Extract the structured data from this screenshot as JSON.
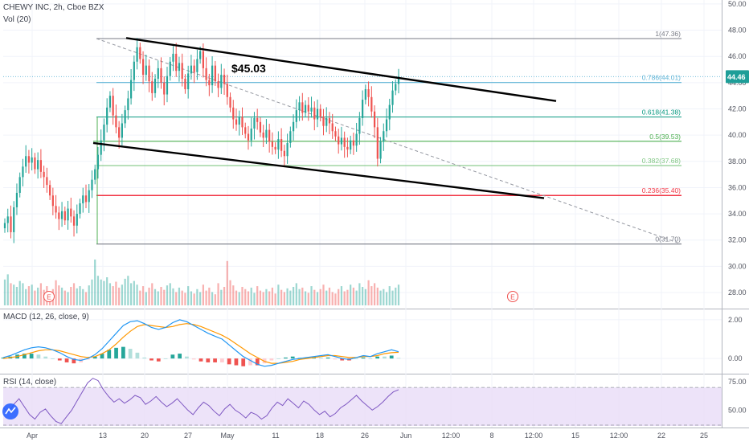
{
  "header": {
    "symbol_line": "CHEWY INC, 2h, Cboe BZX",
    "vol_line": "Vol (20)"
  },
  "colors": {
    "up": "#26a69a",
    "down": "#ef5350",
    "macd_line": "#2196f3",
    "signal_line": "#ff9800",
    "rsi_line": "#7e57c2",
    "rsi_band": "#e9dcf7",
    "trendline": "#000000",
    "fib_1": "#787b86",
    "fib_0786": "#5fb4d6",
    "fib_0618": "#089981",
    "fib_05": "#4caf50",
    "fib_0382": "#81c784",
    "fib_0236": "#f23645",
    "fib_0": "#787b86",
    "price_tag": "#1e9e98"
  },
  "chart_data": [
    {
      "type": "candlestick",
      "pane": "price",
      "title": "CHEWY INC, 2h, Cboe BZX",
      "ylim": [
        26.9,
        50.3
      ],
      "y_ticks": [
        "28.00",
        "30.00",
        "32.00",
        "34.00",
        "36.00",
        "38.00",
        "40.00",
        "42.00",
        "44.00",
        "46.00",
        "48.00",
        "50.00"
      ],
      "x_ticks": [
        "Apr",
        "13",
        "20",
        "27",
        "May",
        "11",
        "18",
        "26",
        "Jun",
        "12:00",
        "8",
        "12:00",
        "15",
        "12:00",
        "22",
        "25"
      ],
      "current_price": "44.46",
      "annotation": "$45.03",
      "fib_levels": [
        {
          "label": "1(47.36)",
          "value": 47.36
        },
        {
          "label": "0.786(44.01)",
          "value": 44.01
        },
        {
          "label": "0.618(41.38)",
          "value": 41.38
        },
        {
          "label": "0.5(39.53)",
          "value": 39.53
        },
        {
          "label": "0.382(37.68)",
          "value": 37.68
        },
        {
          "label": "0.236(35.40)",
          "value": 35.4
        },
        {
          "label": "0(31.70)",
          "value": 31.7
        }
      ],
      "trendlines": [
        {
          "name": "upper",
          "start": 47.4,
          "end": 42.6
        },
        {
          "name": "lower",
          "start": 39.4,
          "end": 35.2
        }
      ],
      "earnings_markers": [
        "E",
        "E"
      ],
      "closes": [
        33.3,
        33.8,
        32.6,
        34.5,
        35.6,
        36.8,
        37.6,
        38.4,
        37.9,
        38.3,
        37.4,
        38.1,
        37.2,
        36.8,
        36.2,
        35.4,
        34.6,
        34.1,
        33.6,
        34.2,
        33.5,
        34.4,
        33.8,
        33.1,
        34.0,
        34.8,
        35.4,
        34.9,
        35.8,
        36.6,
        37.4,
        38.5,
        39.6,
        40.8,
        42.1,
        43.0,
        41.5,
        40.6,
        39.8,
        40.9,
        41.9,
        42.8,
        44.2,
        45.6,
        46.7,
        45.8,
        44.6,
        45.3,
        44.1,
        43.2,
        44.3,
        45.1,
        44.0,
        43.1,
        44.5,
        45.6,
        46.2,
        44.9,
        45.5,
        44.3,
        43.5,
        44.7,
        45.3,
        44.8,
        45.8,
        46.4,
        45.1,
        44.2,
        43.8,
        45.3,
        44.1,
        43.6,
        44.6,
        43.9,
        42.9,
        42.1,
        41.2,
        40.8,
        41.4,
        40.6,
        40.1,
        39.6,
        40.5,
        41.3,
        41.0,
        40.2,
        39.8,
        40.4,
        39.5,
        39.1,
        38.9,
        39.7,
        38.8,
        38.4,
        39.4,
        40.3,
        41.0,
        41.9,
        42.5,
        41.7,
        42.3,
        41.8,
        42.1,
        41.2,
        42.0,
        41.4,
        40.7,
        41.3,
        40.9,
        40.3,
        39.9,
        39.3,
        39.8,
        39.1,
        38.9,
        39.6,
        39.2,
        40.1,
        41.3,
        42.7,
        43.5,
        42.9,
        41.8,
        40.6,
        38.2,
        39.5,
        40.3,
        41.2,
        42.3,
        43.4,
        43.9,
        44.46
      ],
      "volumes": [
        0.35,
        0.42,
        0.3,
        0.28,
        0.25,
        0.33,
        0.3,
        0.22,
        0.26,
        0.28,
        0.2,
        0.24,
        0.3,
        0.21,
        0.26,
        0.19,
        0.22,
        0.34,
        0.27,
        0.24,
        0.2,
        0.18,
        0.25,
        0.3,
        0.23,
        0.26,
        0.22,
        0.18,
        0.27,
        0.35,
        0.62,
        0.4,
        0.35,
        0.33,
        0.38,
        0.3,
        0.26,
        0.32,
        0.24,
        0.28,
        0.36,
        0.4,
        0.3,
        0.33,
        0.28,
        0.2,
        0.26,
        0.18,
        0.24,
        0.3,
        0.22,
        0.19,
        0.25,
        0.21,
        0.27,
        0.3,
        0.23,
        0.18,
        0.24,
        0.2,
        0.17,
        0.26,
        0.19,
        0.16,
        0.22,
        0.18,
        0.28,
        0.2,
        0.24,
        0.18,
        0.15,
        0.3,
        0.21,
        0.25,
        0.6,
        0.34,
        0.27,
        0.2,
        0.18,
        0.25,
        0.22,
        0.19,
        0.24,
        0.17,
        0.26,
        0.2,
        0.18,
        0.22,
        0.19,
        0.24,
        0.16,
        0.28,
        0.21,
        0.18,
        0.23,
        0.2,
        0.25,
        0.3,
        0.22,
        0.24,
        0.19,
        0.17,
        0.26,
        0.21,
        0.18,
        0.22,
        0.28,
        0.2,
        0.24,
        0.18,
        0.16,
        0.22,
        0.26,
        0.19,
        0.21,
        0.28,
        0.24,
        0.2,
        0.3,
        0.25,
        0.22,
        0.34,
        0.26,
        0.3,
        0.24,
        0.2,
        0.22,
        0.18,
        0.26,
        0.2,
        0.24,
        0.28
      ]
    },
    {
      "type": "macd",
      "pane": "macd",
      "title": "MACD (12, 26, close, 9)",
      "ylim": [
        -0.7,
        2.45
      ],
      "y_ticks": [
        "2.00",
        "0.00"
      ],
      "macd": [
        0.05,
        0.15,
        0.3,
        0.45,
        0.55,
        0.6,
        0.55,
        0.45,
        0.3,
        0.1,
        -0.05,
        -0.1,
        0.0,
        0.2,
        0.5,
        0.9,
        1.3,
        1.7,
        1.9,
        1.95,
        1.8,
        1.6,
        1.5,
        1.6,
        1.85,
        2.0,
        1.9,
        1.7,
        1.5,
        1.3,
        1.15,
        1.0,
        0.7,
        0.4,
        0.1,
        -0.1,
        -0.3,
        -0.4,
        -0.35,
        -0.25,
        -0.15,
        -0.05,
        0.0,
        0.05,
        0.1,
        0.15,
        0.2,
        0.1,
        0.0,
        -0.05,
        0.05,
        0.15,
        0.1,
        0.25,
        0.35,
        0.45,
        0.35
      ],
      "signal": [
        0.0,
        0.05,
        0.1,
        0.2,
        0.3,
        0.4,
        0.45,
        0.45,
        0.4,
        0.3,
        0.2,
        0.1,
        0.05,
        0.1,
        0.25,
        0.45,
        0.75,
        1.1,
        1.4,
        1.65,
        1.75,
        1.7,
        1.65,
        1.6,
        1.65,
        1.75,
        1.8,
        1.75,
        1.65,
        1.5,
        1.35,
        1.2,
        1.0,
        0.75,
        0.5,
        0.25,
        0.05,
        -0.15,
        -0.25,
        -0.25,
        -0.2,
        -0.15,
        -0.05,
        0.0,
        0.05,
        0.1,
        0.15,
        0.15,
        0.1,
        0.05,
        0.05,
        0.1,
        0.1,
        0.15,
        0.25,
        0.3,
        0.32
      ]
    },
    {
      "type": "line",
      "pane": "rsi",
      "title": "RSI (14, close)",
      "ylim": [
        36,
        80
      ],
      "y_ticks": [
        "75.00",
        "50.00"
      ],
      "band": [
        30,
        70
      ],
      "values": [
        52,
        48,
        55,
        60,
        53,
        46,
        42,
        48,
        51,
        45,
        40,
        38,
        44,
        50,
        58,
        66,
        74,
        78,
        76,
        68,
        62,
        57,
        60,
        56,
        59,
        63,
        61,
        55,
        58,
        62,
        57,
        53,
        56,
        60,
        55,
        50,
        46,
        52,
        57,
        54,
        49,
        45,
        51,
        55,
        50,
        47,
        43,
        48,
        46,
        42,
        45,
        52,
        57,
        54,
        60,
        56,
        52,
        58,
        55,
        50,
        46,
        49,
        44,
        47,
        52,
        55,
        59,
        63,
        58,
        54,
        50,
        53,
        57,
        62,
        66,
        68
      ]
    }
  ]
}
